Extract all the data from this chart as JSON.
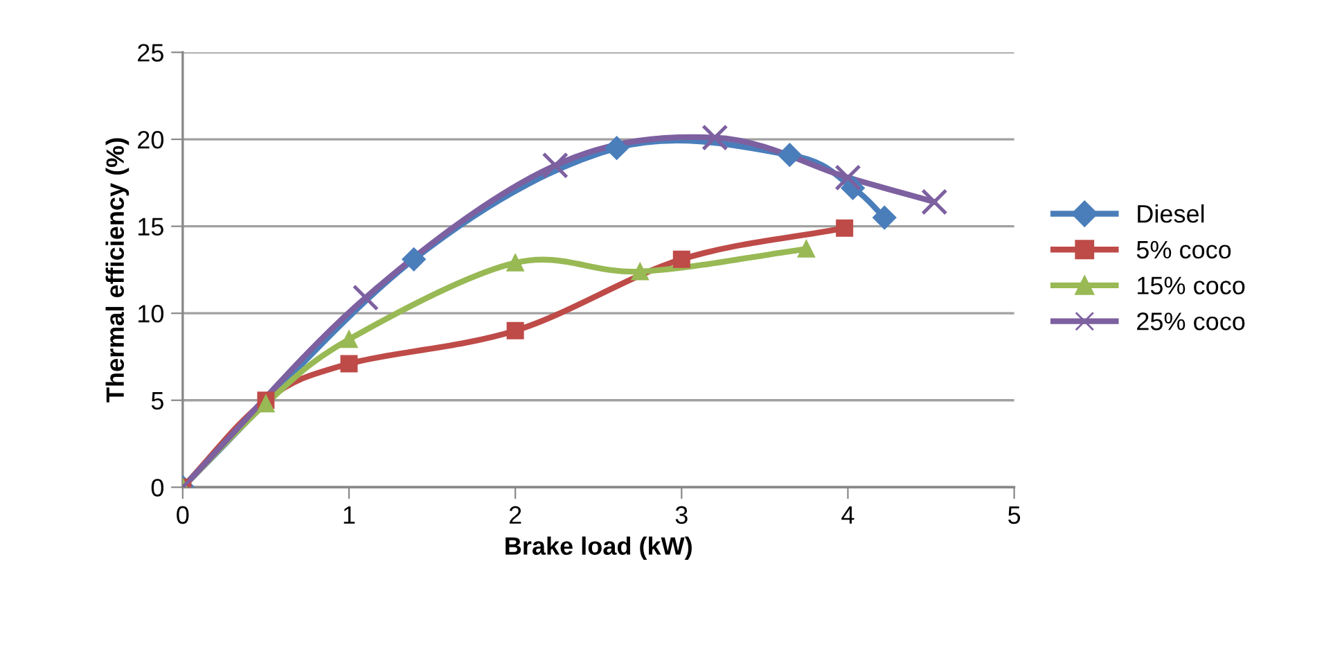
{
  "chart_data": {
    "type": "line",
    "xlabel": "Brake load (kW)",
    "ylabel": "Thermal efficiency (%)",
    "xlim": [
      0,
      5
    ],
    "xticks": [
      0,
      1,
      2,
      3,
      4,
      5
    ],
    "ylim": [
      0,
      25
    ],
    "yticks": [
      0,
      5,
      10,
      15,
      20,
      25
    ],
    "grid": "y",
    "legend": "right",
    "line_style": "solid",
    "series": [
      {
        "name": "Diesel",
        "color": "#4a7ebb",
        "marker": "diamond",
        "x": [
          0,
          1.39,
          2.61,
          3.65,
          4.03,
          4.22
        ],
        "values": [
          0,
          13.1,
          19.5,
          19.1,
          17.2,
          15.5
        ]
      },
      {
        "name": "5% coco",
        "color": "#be4b48",
        "marker": "square",
        "x": [
          0,
          0.5,
          1.0,
          2.0,
          3.0,
          3.98
        ],
        "values": [
          0,
          5.0,
          7.1,
          9.0,
          13.1,
          14.9
        ]
      },
      {
        "name": "15% coco",
        "color": "#98b954",
        "marker": "triangle",
        "x": [
          0,
          0.5,
          1.0,
          2.0,
          2.75,
          3.75
        ],
        "values": [
          0,
          4.8,
          8.5,
          12.9,
          12.4,
          13.7
        ]
      },
      {
        "name": "25% coco",
        "color": "#7d60a0",
        "marker": "cross",
        "x": [
          0,
          1.1,
          2.24,
          3.2,
          4.0,
          4.52
        ],
        "values": [
          0,
          10.9,
          18.5,
          20.1,
          17.8,
          16.4
        ]
      }
    ]
  }
}
